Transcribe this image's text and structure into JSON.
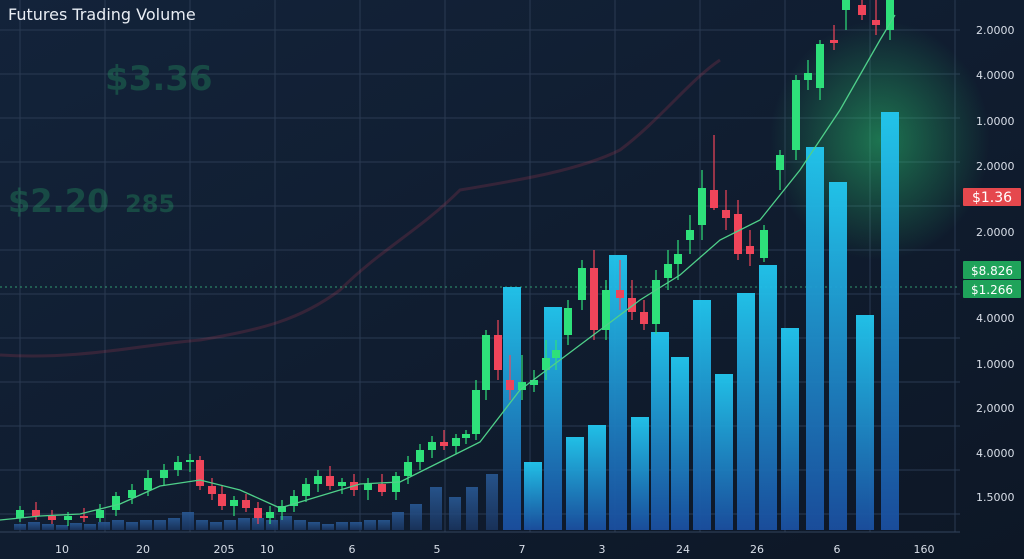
{
  "chart_data": {
    "type": "candlestick",
    "title": "Futures Trading Volume",
    "xlim": [
      0,
      1024
    ],
    "ylim": [
      0,
      530
    ],
    "x_labels": [
      "10",
      "20",
      "205",
      "10",
      "6",
      "5",
      "7",
      "3",
      "24",
      "26",
      "6",
      "160"
    ],
    "right_axis_labels": [
      "2.0000",
      "4.0000",
      "1.0000",
      "2.0000",
      "2.0000",
      "4.0000",
      "1.0000",
      "2,0000",
      "4.0000",
      "1.5000"
    ],
    "price_tags": [
      {
        "label": "$1.36",
        "color": "#e5484d"
      },
      {
        "label": "$8.826",
        "color": "#1fa35a"
      },
      {
        "label": "$1.266",
        "color": "#1fa35a"
      }
    ],
    "ghost_texts": [
      "$3.36",
      "$2.20",
      "285"
    ],
    "up_color": "#2ee07a",
    "down_color": "#f0455a",
    "candles": {
      "x": [
        20,
        36,
        52,
        68,
        84,
        100,
        116,
        132,
        148,
        164,
        178,
        190,
        200,
        212,
        222,
        234,
        246,
        258,
        270,
        282,
        294,
        306,
        318,
        330,
        342,
        354,
        368,
        382,
        396,
        408,
        420,
        432,
        444,
        456,
        466,
        476,
        486,
        498,
        510,
        522,
        534,
        546,
        556,
        568,
        582,
        594,
        606,
        620,
        632,
        644,
        656,
        668,
        678,
        690,
        702,
        714,
        726,
        738,
        750,
        764,
        780,
        796,
        808,
        820,
        834,
        846,
        862,
        876,
        890
      ],
      "open": [
        12,
        20,
        14,
        10,
        14,
        12,
        20,
        32,
        40,
        52,
        60,
        68,
        70,
        44,
        36,
        24,
        30,
        22,
        12,
        18,
        24,
        34,
        46,
        54,
        44,
        48,
        40,
        46,
        38,
        54,
        68,
        80,
        88,
        84,
        92,
        96,
        140,
        195,
        150,
        140,
        145,
        160,
        172,
        195,
        230,
        262,
        200,
        240,
        232,
        218,
        206,
        252,
        266,
        290,
        305,
        340,
        320,
        316,
        284,
        272,
        360,
        380,
        450,
        442,
        490,
        520,
        525,
        510,
        500
      ],
      "high": [
        24,
        28,
        20,
        18,
        22,
        26,
        38,
        46,
        60,
        66,
        74,
        76,
        74,
        52,
        44,
        34,
        36,
        28,
        24,
        30,
        40,
        52,
        60,
        64,
        52,
        56,
        52,
        56,
        58,
        74,
        86,
        94,
        100,
        96,
        100,
        150,
        200,
        210,
        175,
        175,
        160,
        190,
        190,
        230,
        270,
        280,
        250,
        270,
        250,
        230,
        260,
        280,
        290,
        315,
        360,
        395,
        340,
        330,
        300,
        305,
        380,
        455,
        470,
        490,
        505,
        540,
        540,
        540,
        545
      ],
      "low": [
        8,
        10,
        6,
        4,
        8,
        8,
        14,
        26,
        34,
        44,
        54,
        58,
        40,
        30,
        20,
        14,
        18,
        6,
        6,
        10,
        18,
        28,
        38,
        40,
        36,
        34,
        30,
        34,
        30,
        46,
        60,
        72,
        80,
        76,
        86,
        90,
        130,
        150,
        130,
        130,
        138,
        150,
        160,
        185,
        220,
        190,
        190,
        220,
        210,
        200,
        196,
        240,
        250,
        276,
        290,
        320,
        300,
        270,
        264,
        268,
        340,
        370,
        440,
        430,
        480,
        500,
        510,
        495,
        490
      ],
      "close": [
        20,
        14,
        10,
        14,
        12,
        20,
        34,
        40,
        52,
        60,
        68,
        70,
        44,
        36,
        24,
        30,
        22,
        12,
        18,
        24,
        34,
        46,
        54,
        44,
        48,
        40,
        46,
        38,
        54,
        68,
        80,
        88,
        84,
        92,
        96,
        140,
        195,
        160,
        140,
        148,
        150,
        172,
        180,
        222,
        262,
        200,
        240,
        232,
        218,
        206,
        250,
        266,
        276,
        300,
        342,
        322,
        312,
        276,
        276,
        300,
        375,
        450,
        457,
        486,
        487,
        535,
        515,
        505,
        530
      ]
    },
    "moving_average": {
      "color": "#4fd08a",
      "x": [
        0,
        40,
        80,
        120,
        160,
        200,
        240,
        280,
        320,
        360,
        400,
        440,
        480,
        520,
        560,
        600,
        640,
        680,
        720,
        760,
        800,
        840,
        880,
        895
      ],
      "values": [
        10,
        14,
        16,
        26,
        44,
        50,
        40,
        22,
        34,
        46,
        48,
        68,
        88,
        140,
        170,
        200,
        230,
        255,
        290,
        310,
        360,
        420,
        490,
        515
      ]
    },
    "volume": {
      "x": [
        20,
        34,
        48,
        62,
        76,
        90,
        104,
        118,
        132,
        146,
        160,
        174,
        188,
        202,
        216,
        230,
        244,
        258,
        272,
        286,
        300,
        314,
        328,
        342,
        356,
        370,
        384,
        398,
        416,
        436,
        455,
        472,
        492,
        512,
        533,
        553,
        575,
        597,
        618,
        640,
        660,
        680,
        702,
        724,
        746,
        768,
        790,
        815,
        838,
        865,
        890
      ],
      "values": [
        6,
        8,
        6,
        5,
        7,
        6,
        8,
        10,
        8,
        10,
        10,
        12,
        18,
        10,
        8,
        10,
        12,
        12,
        10,
        14,
        10,
        8,
        6,
        8,
        8,
        10,
        10,
        18,
        26,
        43,
        33,
        43,
        56,
        243,
        68,
        223,
        93,
        105,
        275,
        113,
        198,
        173,
        230,
        156,
        237,
        265,
        202,
        383,
        348,
        215,
        418
      ]
    }
  }
}
